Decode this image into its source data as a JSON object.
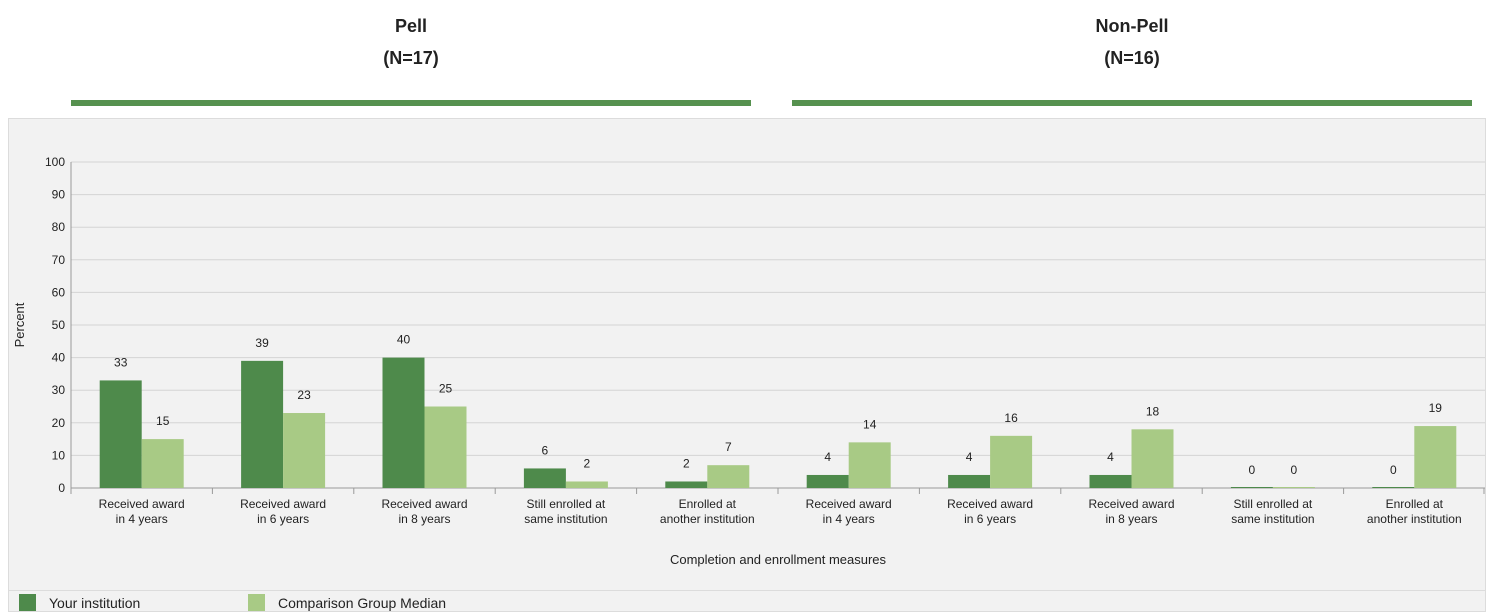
{
  "groups": [
    {
      "name": "Pell",
      "n_label": "(N=17)"
    },
    {
      "name": "Non-Pell",
      "n_label": "(N=16)"
    }
  ],
  "colors": {
    "primary": "#4e8a4b",
    "comparison": "#a8ca85",
    "rule": "#56914f"
  },
  "legend": {
    "primary": "Your institution",
    "comparison": "Comparison Group Median"
  },
  "chart_data": {
    "type": "bar",
    "title": "",
    "xlabel": "Completion and enrollment measures",
    "ylabel": "Percent",
    "ylim": [
      0,
      100
    ],
    "yticks": [
      0,
      10,
      20,
      30,
      40,
      50,
      60,
      70,
      80,
      90,
      100
    ],
    "grid": true,
    "legend_position": "bottom-left",
    "categories": [
      [
        "Received award",
        "in 4 years"
      ],
      [
        "Received award",
        "in 6 years"
      ],
      [
        "Received award",
        "in 8 years"
      ],
      [
        "Still enrolled at",
        "same institution"
      ],
      [
        "Enrolled at",
        "another institution"
      ],
      [
        "Received award",
        "in 4 years"
      ],
      [
        "Received award",
        "in 6 years"
      ],
      [
        "Received award",
        "in 8 years"
      ],
      [
        "Still enrolled at",
        "same institution"
      ],
      [
        "Enrolled at",
        "another institution"
      ]
    ],
    "series": [
      {
        "name": "Your institution",
        "values": [
          33,
          39,
          40,
          6,
          2,
          4,
          4,
          4,
          0,
          0
        ]
      },
      {
        "name": "Comparison Group Median",
        "values": [
          15,
          23,
          25,
          2,
          7,
          14,
          16,
          18,
          0,
          19
        ]
      }
    ]
  }
}
